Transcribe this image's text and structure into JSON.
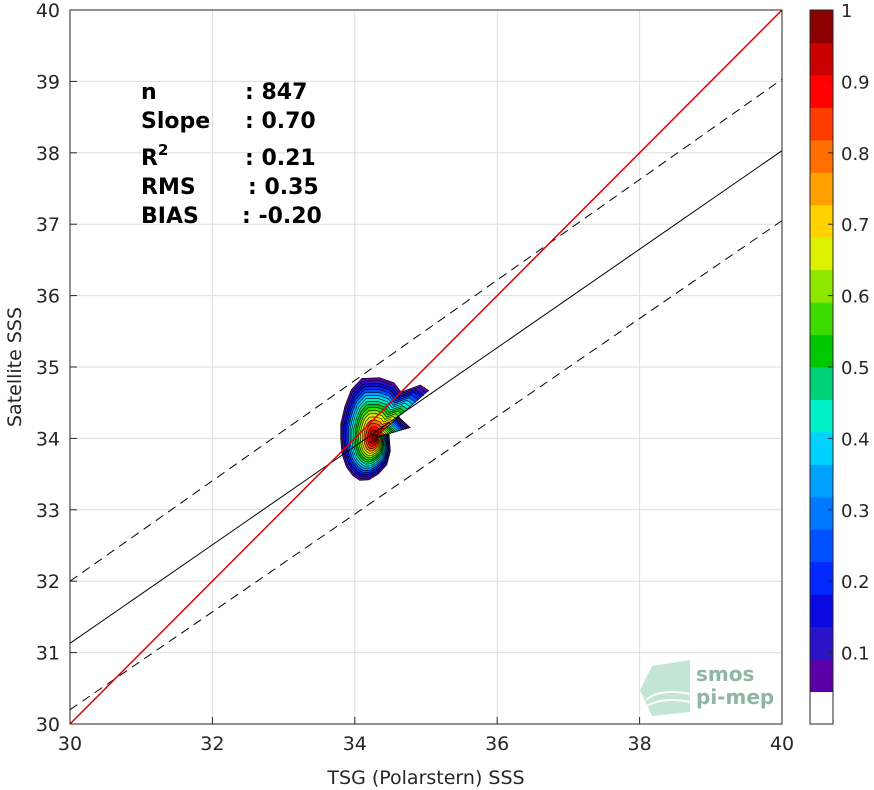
{
  "chart_data": {
    "type": "contour",
    "xlabel": "TSG (Polarstern) SSS",
    "ylabel": "Satellite SSS",
    "xlim": [
      30,
      40
    ],
    "ylim": [
      30,
      40
    ],
    "x_ticks": [
      "30",
      "32",
      "34",
      "36",
      "38",
      "40"
    ],
    "y_ticks": [
      "30",
      "31",
      "32",
      "33",
      "34",
      "35",
      "36",
      "37",
      "38",
      "39",
      "40"
    ],
    "grid": true,
    "one_to_one_line": {
      "color": "#e00000",
      "x": [
        30,
        40
      ],
      "y": [
        30,
        40
      ]
    },
    "regression_line": {
      "x": [
        30,
        40
      ],
      "y": [
        31.13,
        38.03
      ]
    },
    "confidence_band_upper": {
      "x": [
        30,
        40
      ],
      "y": [
        32.0,
        39.03
      ]
    },
    "confidence_band_lower": {
      "x": [
        30,
        40
      ],
      "y": [
        30.2,
        37.05
      ]
    },
    "density_contours": {
      "center": [
        34.27,
        34.0
      ],
      "levels": [
        0.05,
        0.1,
        0.15,
        0.2,
        0.25,
        0.3,
        0.35,
        0.4,
        0.45,
        0.5,
        0.55,
        0.6,
        0.65,
        0.7,
        0.75,
        0.8,
        0.85,
        0.9,
        0.95
      ],
      "outer_extent": {
        "x": [
          33.8,
          35.05
        ],
        "y": [
          33.4,
          34.85
        ]
      }
    },
    "stats": [
      {
        "label": "n",
        "value": ": 847"
      },
      {
        "label": "Slope",
        "value": ": 0.70"
      },
      {
        "label": "R",
        "sup": "2",
        "value": ": 0.21"
      },
      {
        "label": "RMS",
        "value": ": 0.35"
      },
      {
        "label": "BIAS",
        "value": ": -0.20"
      }
    ],
    "colorbar": {
      "ticks": [
        "0.1",
        "0.2",
        "0.3",
        "0.4",
        "0.5",
        "0.6",
        "0.7",
        "0.8",
        "0.9",
        "1"
      ],
      "range": [
        0,
        1
      ],
      "colors": [
        "#ffffff",
        "#5a00a8",
        "#2b14c8",
        "#0a0ae0",
        "#0028ff",
        "#0050ff",
        "#0078ff",
        "#00a0ff",
        "#00d2ff",
        "#00f0c8",
        "#00d27a",
        "#00c800",
        "#3cdc00",
        "#8ce600",
        "#dcf000",
        "#ffd200",
        "#ffa000",
        "#ff6e00",
        "#ff3c00",
        "#ff0000",
        "#c80000",
        "#8c0000"
      ]
    },
    "watermark": {
      "line1": "smos",
      "line2": "pi-mep"
    }
  }
}
